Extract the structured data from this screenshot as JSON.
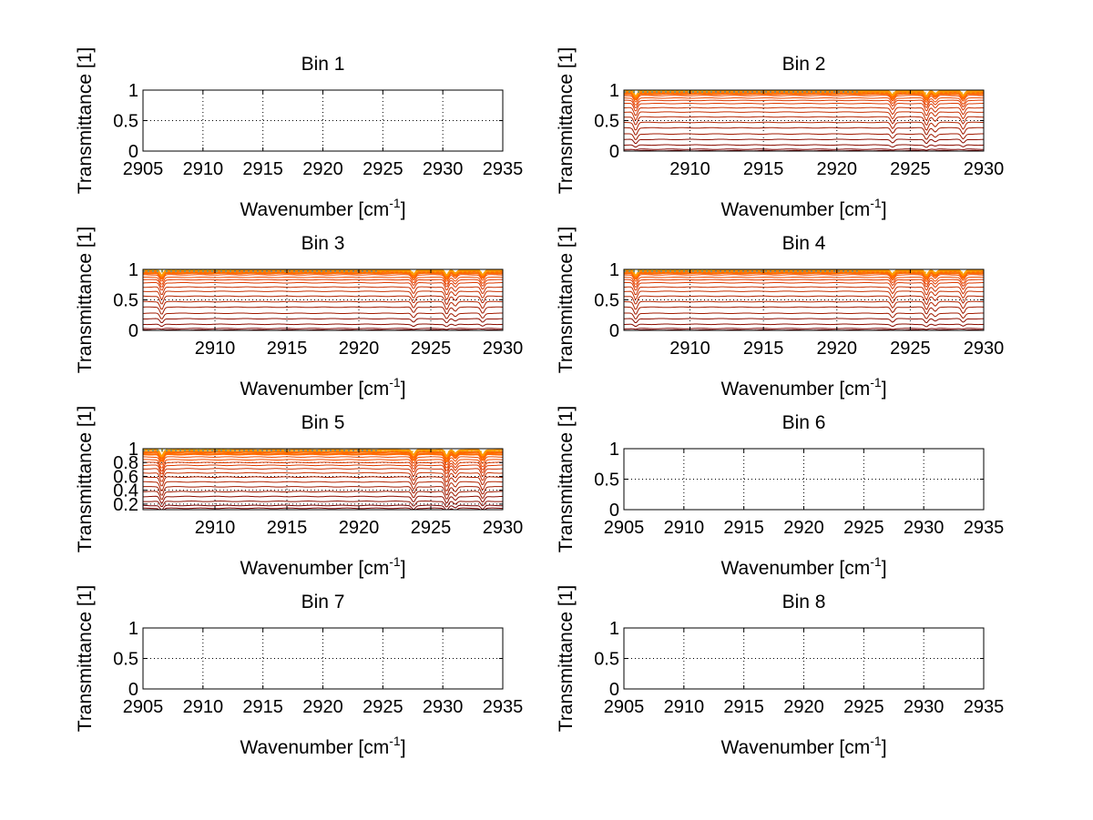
{
  "figure": {
    "background": "#ffffff",
    "axis_color": "#000000",
    "grid_color": "#000000",
    "spectrum_colors": [
      "#7a0000",
      "#8b0d00",
      "#a01a00",
      "#b32400",
      "#c83000",
      "#dd3a00",
      "#ee4a00",
      "#ff6a00",
      "#ff9a00"
    ],
    "top_edge_colors": [
      "#ffcc00",
      "#2a6fd6",
      "#e6a000"
    ]
  },
  "chart_data": [
    {
      "type": "line",
      "title": "Bin 1",
      "xlabel": "Wavenumber [cm",
      "xlabel_sup": "-1",
      "xlabel_end": "]",
      "ylabel": "Transmittance [1]",
      "xlim": [
        2905,
        2935
      ],
      "ylim": [
        0,
        1
      ],
      "xticks": [
        2905,
        2910,
        2915,
        2920,
        2925,
        2930,
        2935
      ],
      "xtick_labels": [
        "2905",
        "2910",
        "2915",
        "2920",
        "2925",
        "2930",
        "2935"
      ],
      "yticks": [
        0,
        0.5,
        1
      ],
      "ytick_labels": [
        "0",
        "0.5",
        "1"
      ],
      "grid": true,
      "series": []
    },
    {
      "type": "line",
      "title": "Bin 2",
      "xlabel": "Wavenumber [cm",
      "xlabel_sup": "-1",
      "xlabel_end": "]",
      "ylabel": "Transmittance [1]",
      "xlim": [
        2905.5,
        2930
      ],
      "ylim": [
        0,
        1
      ],
      "xticks": [
        2910,
        2915,
        2920,
        2925,
        2930
      ],
      "xtick_labels": [
        "2910",
        "2915",
        "2920",
        "2925",
        "2930"
      ],
      "yticks": [
        0,
        0.5,
        1
      ],
      "ytick_labels": [
        "0",
        "0.5",
        "1"
      ],
      "grid": true,
      "dips": [
        {
          "x": 2906.3,
          "depth": 1.0
        },
        {
          "x": 2923.8,
          "depth": 0.8
        },
        {
          "x": 2926.1,
          "depth": 1.0
        },
        {
          "x": 2926.7,
          "depth": 0.55
        },
        {
          "x": 2928.6,
          "depth": 0.85
        }
      ],
      "baselines": [
        0.005,
        0.03,
        0.1,
        0.19,
        0.28,
        0.38,
        0.47,
        0.56,
        0.64,
        0.71,
        0.78,
        0.83,
        0.87,
        0.91,
        0.94,
        0.97,
        0.985
      ]
    },
    {
      "type": "line",
      "title": "Bin 3",
      "xlabel": "Wavenumber [cm",
      "xlabel_sup": "-1",
      "xlabel_end": "]",
      "ylabel": "Transmittance [1]",
      "xlim": [
        2905,
        2930
      ],
      "ylim": [
        0,
        1
      ],
      "xticks": [
        2910,
        2915,
        2920,
        2925,
        2930
      ],
      "xtick_labels": [
        "2910",
        "2915",
        "2920",
        "2925",
        "2930"
      ],
      "yticks": [
        0,
        0.5,
        1
      ],
      "ytick_labels": [
        "0",
        "0.5",
        "1"
      ],
      "grid": true,
      "dips": [
        {
          "x": 2906.3,
          "depth": 1.0
        },
        {
          "x": 2923.8,
          "depth": 0.8
        },
        {
          "x": 2926.1,
          "depth": 1.0
        },
        {
          "x": 2926.7,
          "depth": 0.55
        },
        {
          "x": 2928.6,
          "depth": 0.85
        }
      ],
      "baselines": [
        0.005,
        0.03,
        0.1,
        0.19,
        0.28,
        0.38,
        0.47,
        0.56,
        0.64,
        0.71,
        0.78,
        0.83,
        0.87,
        0.91,
        0.94,
        0.97,
        0.985
      ]
    },
    {
      "type": "line",
      "title": "Bin 4",
      "xlabel": "Wavenumber [cm",
      "xlabel_sup": "-1",
      "xlabel_end": "]",
      "ylabel": "Transmittance [1]",
      "xlim": [
        2905.5,
        2930
      ],
      "ylim": [
        0,
        1
      ],
      "xticks": [
        2910,
        2915,
        2920,
        2925,
        2930
      ],
      "xtick_labels": [
        "2910",
        "2915",
        "2920",
        "2925",
        "2930"
      ],
      "yticks": [
        0,
        0.5,
        1
      ],
      "ytick_labels": [
        "0",
        "0.5",
        "1"
      ],
      "grid": true,
      "dips": [
        {
          "x": 2906.3,
          "depth": 1.0
        },
        {
          "x": 2923.8,
          "depth": 0.8
        },
        {
          "x": 2926.1,
          "depth": 1.0
        },
        {
          "x": 2926.7,
          "depth": 0.55
        },
        {
          "x": 2928.6,
          "depth": 0.85
        }
      ],
      "baselines": [
        0.005,
        0.03,
        0.1,
        0.19,
        0.28,
        0.38,
        0.47,
        0.56,
        0.64,
        0.71,
        0.78,
        0.83,
        0.87,
        0.91,
        0.94,
        0.97,
        0.985
      ]
    },
    {
      "type": "line",
      "title": "Bin 5",
      "xlabel": "Wavenumber [cm",
      "xlabel_sup": "-1",
      "xlabel_end": "]",
      "ylabel": "Transmittance [1]",
      "xlim": [
        2905,
        2930
      ],
      "ylim": [
        0.12,
        1
      ],
      "xticks": [
        2910,
        2915,
        2920,
        2925,
        2930
      ],
      "xtick_labels": [
        "2910",
        "2915",
        "2920",
        "2925",
        "2930"
      ],
      "yticks": [
        0.2,
        0.4,
        0.6,
        0.8,
        1
      ],
      "ytick_labels": [
        "0.2",
        "0.4",
        "0.6",
        "0.8",
        "1"
      ],
      "grid": true,
      "dips": [
        {
          "x": 2906.3,
          "depth": 1.0
        },
        {
          "x": 2923.8,
          "depth": 0.8
        },
        {
          "x": 2926.1,
          "depth": 1.0
        },
        {
          "x": 2926.7,
          "depth": 0.55
        },
        {
          "x": 2928.6,
          "depth": 0.85
        }
      ],
      "baselines": [
        0.14,
        0.18,
        0.24,
        0.31,
        0.38,
        0.45,
        0.52,
        0.59,
        0.65,
        0.71,
        0.76,
        0.8,
        0.84,
        0.88,
        0.92,
        0.95,
        0.98
      ]
    },
    {
      "type": "line",
      "title": "Bin 6",
      "xlabel": "Wavenumber [cm",
      "xlabel_sup": "-1",
      "xlabel_end": "]",
      "ylabel": "Transmittance [1]",
      "xlim": [
        2905,
        2935
      ],
      "ylim": [
        0,
        1
      ],
      "xticks": [
        2905,
        2910,
        2915,
        2920,
        2925,
        2930,
        2935
      ],
      "xtick_labels": [
        "2905",
        "2910",
        "2915",
        "2920",
        "2925",
        "2930",
        "2935"
      ],
      "yticks": [
        0,
        0.5,
        1
      ],
      "ytick_labels": [
        "0",
        "0.5",
        "1"
      ],
      "grid": true,
      "series": []
    },
    {
      "type": "line",
      "title": "Bin 7",
      "xlabel": "Wavenumber [cm",
      "xlabel_sup": "-1",
      "xlabel_end": "]",
      "ylabel": "Transmittance [1]",
      "xlim": [
        2905,
        2935
      ],
      "ylim": [
        0,
        1
      ],
      "xticks": [
        2905,
        2910,
        2915,
        2920,
        2925,
        2930,
        2935
      ],
      "xtick_labels": [
        "2905",
        "2910",
        "2915",
        "2920",
        "2925",
        "2930",
        "2935"
      ],
      "yticks": [
        0,
        0.5,
        1
      ],
      "ytick_labels": [
        "0",
        "0.5",
        "1"
      ],
      "grid": true,
      "series": []
    },
    {
      "type": "line",
      "title": "Bin 8",
      "xlabel": "Wavenumber [cm",
      "xlabel_sup": "-1",
      "xlabel_end": "]",
      "ylabel": "Transmittance [1]",
      "xlim": [
        2905,
        2935
      ],
      "ylim": [
        0,
        1
      ],
      "xticks": [
        2905,
        2910,
        2915,
        2920,
        2925,
        2930,
        2935
      ],
      "xtick_labels": [
        "2905",
        "2910",
        "2915",
        "2920",
        "2925",
        "2930",
        "2935"
      ],
      "yticks": [
        0,
        0.5,
        1
      ],
      "ytick_labels": [
        "0",
        "0.5",
        "1"
      ],
      "grid": true,
      "series": []
    }
  ]
}
